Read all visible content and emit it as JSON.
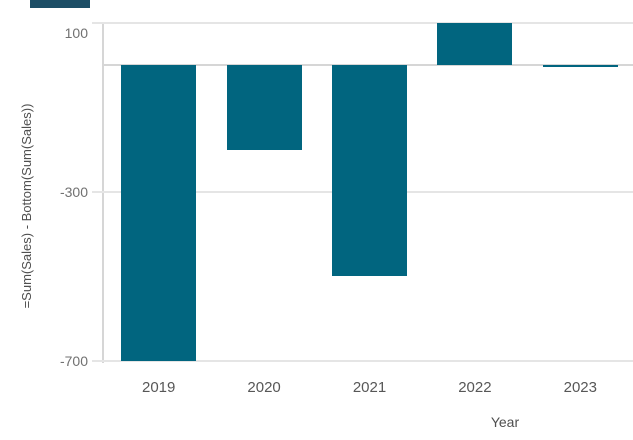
{
  "chart_data": {
    "type": "bar",
    "categories": [
      "2019",
      "2020",
      "2021",
      "2022",
      "2023"
    ],
    "values": [
      -700,
      -200,
      -500,
      100,
      -5
    ],
    "title": "",
    "xlabel": "Year",
    "ylabel": "=Sum(Sales) - Bottom(Sum(Sales))",
    "yticks": [
      100,
      -300,
      -700
    ],
    "ylim": [
      110,
      -710
    ],
    "zero_line": 0,
    "grid": "horizontal",
    "legend": "none"
  },
  "colors": {
    "bar": "#01657f",
    "gridline": "#e5e5e5",
    "zero_line": "#d6d6d6",
    "axis_line": "#d6d6d6",
    "ytick_label": "#717171",
    "xtick_label": "#575757",
    "axis_title": "#4f4f4f",
    "background": "#ffffff",
    "artifact_bar": "#1d4e66"
  }
}
